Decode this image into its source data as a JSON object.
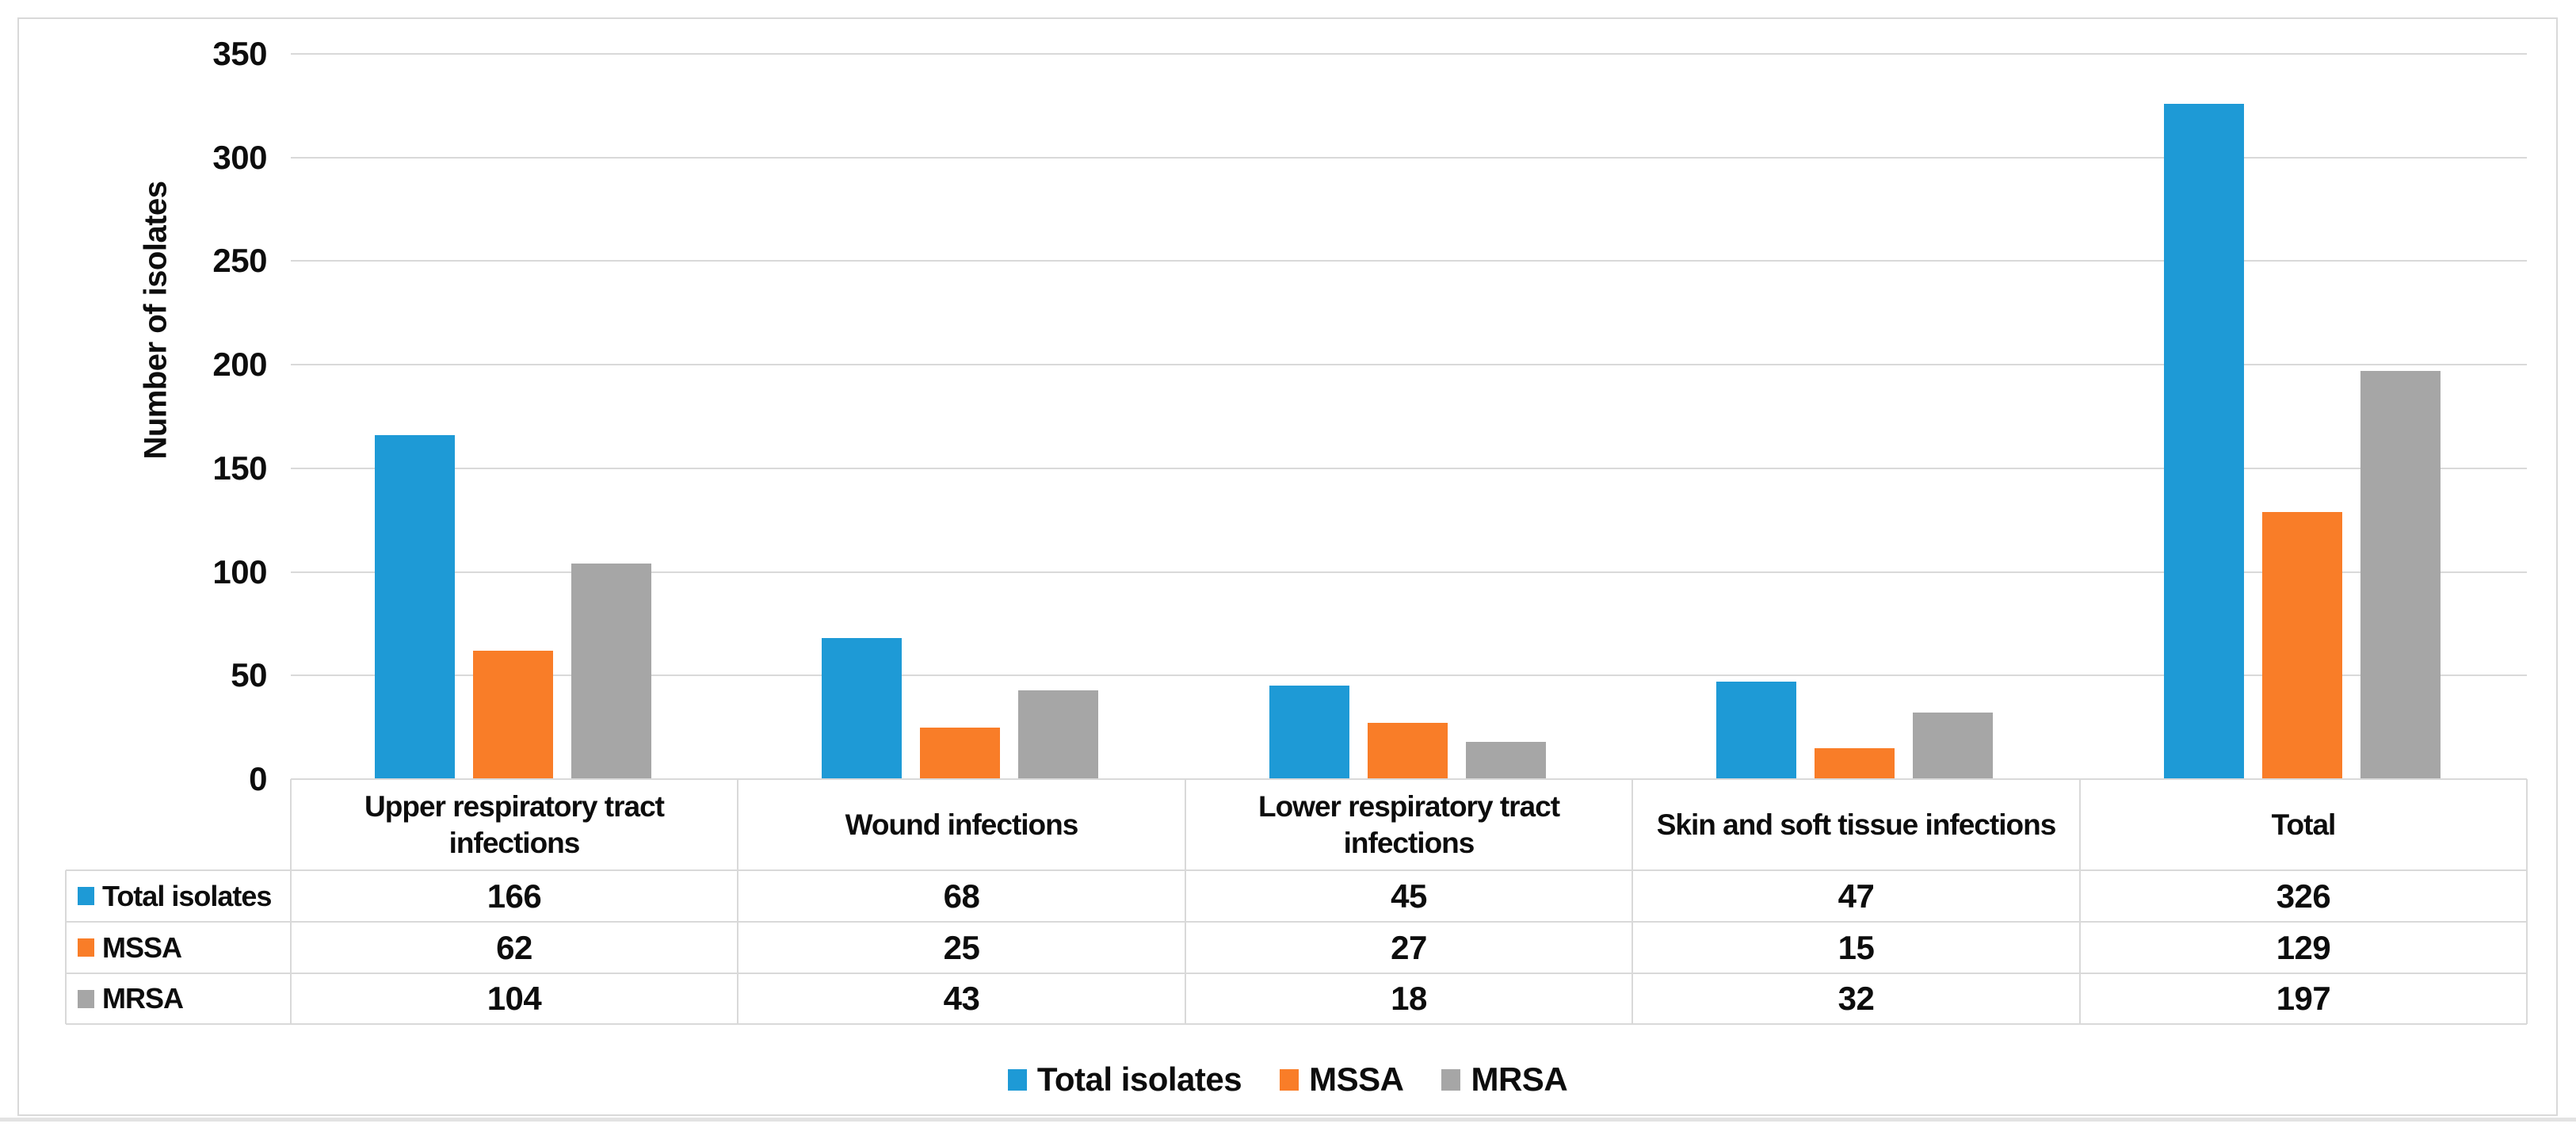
{
  "chart_data": {
    "type": "bar",
    "title": "",
    "ylabel": "Number of isolates",
    "xlabel": "",
    "ylim": [
      0,
      350
    ],
    "ytick_step": 50,
    "yticks": [
      0,
      50,
      100,
      150,
      200,
      250,
      300,
      350
    ],
    "grid": true,
    "legend_position": "bottom",
    "data_table_shown": true,
    "categories": [
      {
        "label": "Upper respiratory tract infections",
        "lines": [
          "Upper respiratory tract",
          "infections"
        ]
      },
      {
        "label": "Wound infections",
        "lines": [
          "Wound infections"
        ]
      },
      {
        "label": "Lower respiratory tract infections",
        "lines": [
          "Lower respiratory tract",
          "infections"
        ]
      },
      {
        "label": "Skin and soft tissue infections",
        "lines": [
          "Skin and soft tissue infections"
        ]
      },
      {
        "label": "Total",
        "lines": [
          "Total"
        ]
      }
    ],
    "series": [
      {
        "name": "Total isolates",
        "color": "#1e9ad6",
        "values": [
          166,
          68,
          45,
          47,
          326
        ]
      },
      {
        "name": "MSSA",
        "color": "#f97d28",
        "values": [
          62,
          25,
          27,
          15,
          129
        ]
      },
      {
        "name": "MRSA",
        "color": "#a6a6a6",
        "values": [
          104,
          43,
          18,
          32,
          197
        ]
      }
    ],
    "colors": {
      "grid": "#d9d9d9",
      "frame_border": "#d9d9d9",
      "text": "#0d0d0d",
      "background": "#ffffff"
    }
  }
}
